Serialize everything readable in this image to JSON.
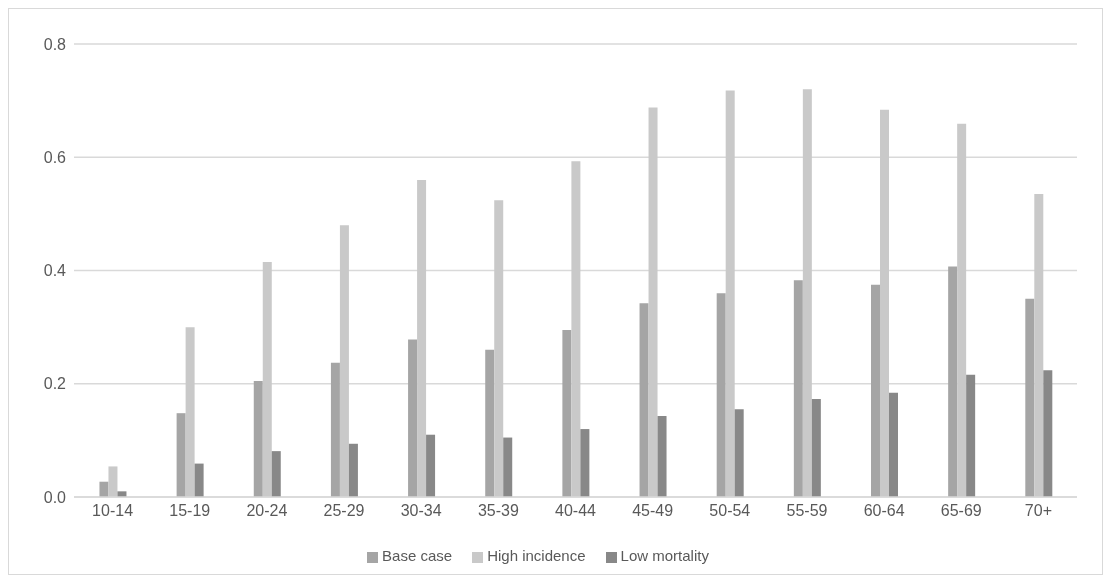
{
  "chart_data": {
    "type": "bar",
    "categories": [
      "10-14",
      "15-19",
      "20-24",
      "25-29",
      "30-34",
      "35-39",
      "40-44",
      "45-49",
      "50-54",
      "55-59",
      "60-64",
      "65-69",
      "70+"
    ],
    "series": [
      {
        "name": "Base case",
        "color": "#a5a5a5",
        "values": [
          0.027,
          0.148,
          0.205,
          0.237,
          0.278,
          0.26,
          0.295,
          0.342,
          0.36,
          0.383,
          0.375,
          0.407,
          0.35
        ]
      },
      {
        "name": "High incidence",
        "color": "#c9c9c9",
        "values": [
          0.054,
          0.3,
          0.415,
          0.48,
          0.56,
          0.524,
          0.593,
          0.688,
          0.718,
          0.72,
          0.684,
          0.659,
          0.535
        ]
      },
      {
        "name": "Low mortality",
        "color": "#888888",
        "values": [
          0.01,
          0.059,
          0.081,
          0.094,
          0.11,
          0.105,
          0.12,
          0.143,
          0.155,
          0.173,
          0.184,
          0.216,
          0.224
        ]
      }
    ],
    "ylim": [
      0,
      0.8
    ],
    "yticks": [
      {
        "value": 0,
        "label": "0.0"
      },
      0.2,
      0.4,
      0.6,
      0.8
    ],
    "grid": "y",
    "legend": "bottom"
  }
}
